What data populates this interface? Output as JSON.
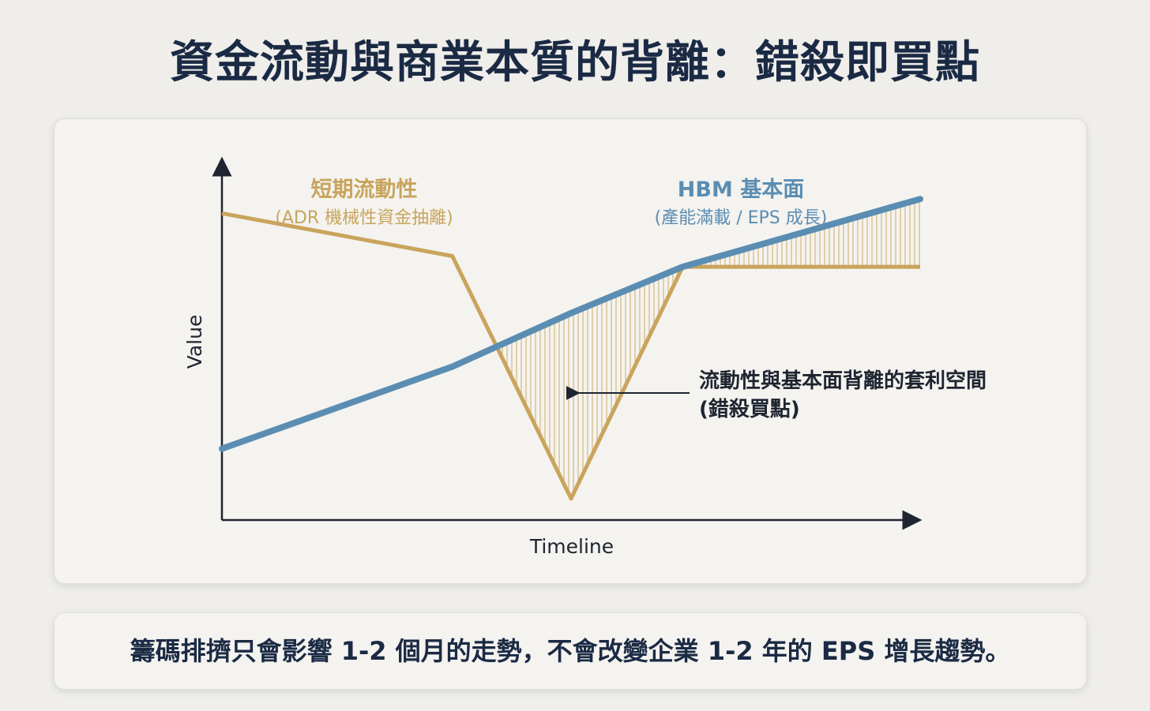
{
  "page": {
    "title": "資金流動與商業本質的背離：錯殺即買點"
  },
  "footer": {
    "text": "籌碼排擠只會影響 1-2 個月的走勢，不會改變企業 1-2 年的 EPS 增長趨勢。"
  },
  "colors": {
    "liquidity": "#c9a45c",
    "fundamental": "#5b8db3",
    "axis": "#1e2430",
    "annotation": "#1e2430"
  },
  "chart_data": {
    "type": "line",
    "title": "",
    "xlabel": "Timeline",
    "ylabel": "Value",
    "xlim": [
      0,
      10
    ],
    "ylim": [
      0,
      10
    ],
    "grid": false,
    "series": [
      {
        "name": "短期流動性",
        "subtitle": "(ADR 機械性資金抽離)",
        "color": "#c9a45c",
        "points": [
          [
            0,
            8.6
          ],
          [
            3.3,
            7.4
          ],
          [
            5.0,
            0.6
          ],
          [
            6.6,
            7.1
          ],
          [
            10.0,
            7.1
          ]
        ]
      },
      {
        "name": "HBM 基本面",
        "subtitle": "(產能滿載 / EPS 成長)",
        "color": "#5b8db3",
        "points": [
          [
            0,
            2.0
          ],
          [
            3.3,
            4.3
          ],
          [
            5.0,
            5.8
          ],
          [
            6.6,
            7.1
          ],
          [
            10.0,
            9.0
          ]
        ]
      }
    ],
    "annotation": {
      "line1": "流動性與基本面背離的套利空間",
      "line2": "(錯殺買點)"
    }
  }
}
